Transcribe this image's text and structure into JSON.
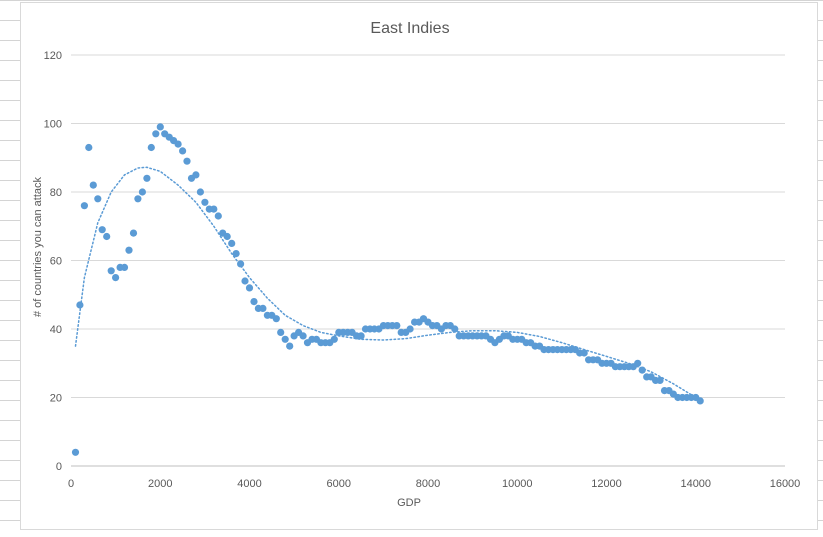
{
  "chart_data": {
    "type": "scatter",
    "title": "East Indies",
    "xlabel": "GDP",
    "ylabel": "# of countries you can attack",
    "xlim": [
      0,
      16000
    ],
    "ylim": [
      0,
      120
    ],
    "x_ticks": [
      "0",
      "2000",
      "4000",
      "6000",
      "8000",
      "10000",
      "12000",
      "14000",
      "16000"
    ],
    "y_ticks": [
      "0",
      "20",
      "40",
      "60",
      "80",
      "100",
      "120"
    ],
    "grid": "horizontal",
    "legend": "none",
    "marker_color": "#5b9bd5",
    "trendline": {
      "type": "polynomial",
      "style": "dotted",
      "color": "#5b9bd5"
    },
    "series": [
      {
        "points": [
          [
            100,
            4
          ],
          [
            200,
            47
          ],
          [
            300,
            76
          ],
          [
            400,
            93
          ],
          [
            500,
            82
          ],
          [
            600,
            78
          ],
          [
            700,
            69
          ],
          [
            800,
            67
          ],
          [
            900,
            57
          ],
          [
            1000,
            55
          ],
          [
            1100,
            58
          ],
          [
            1200,
            58
          ],
          [
            1300,
            63
          ],
          [
            1400,
            68
          ],
          [
            1500,
            78
          ],
          [
            1600,
            80
          ],
          [
            1700,
            84
          ],
          [
            1800,
            93
          ],
          [
            1900,
            97
          ],
          [
            2000,
            99
          ],
          [
            2100,
            97
          ],
          [
            2200,
            96
          ],
          [
            2300,
            95
          ],
          [
            2400,
            94
          ],
          [
            2500,
            92
          ],
          [
            2600,
            89
          ],
          [
            2700,
            84
          ],
          [
            2800,
            85
          ],
          [
            2900,
            80
          ],
          [
            3000,
            77
          ],
          [
            3100,
            75
          ],
          [
            3200,
            75
          ],
          [
            3300,
            73
          ],
          [
            3400,
            68
          ],
          [
            3500,
            67
          ],
          [
            3600,
            65
          ],
          [
            3700,
            62
          ],
          [
            3800,
            59
          ],
          [
            3900,
            54
          ],
          [
            4000,
            52
          ],
          [
            4100,
            48
          ],
          [
            4200,
            46
          ],
          [
            4300,
            46
          ],
          [
            4400,
            44
          ],
          [
            4500,
            44
          ],
          [
            4600,
            43
          ],
          [
            4700,
            39
          ],
          [
            4800,
            37
          ],
          [
            4900,
            35
          ],
          [
            5000,
            38
          ],
          [
            5100,
            39
          ],
          [
            5200,
            38
          ],
          [
            5300,
            36
          ],
          [
            5400,
            37
          ],
          [
            5500,
            37
          ],
          [
            5600,
            36
          ],
          [
            5700,
            36
          ],
          [
            5800,
            36
          ],
          [
            5900,
            37
          ],
          [
            6000,
            39
          ],
          [
            6100,
            39
          ],
          [
            6200,
            39
          ],
          [
            6300,
            39
          ],
          [
            6400,
            38
          ],
          [
            6500,
            38
          ],
          [
            6600,
            40
          ],
          [
            6700,
            40
          ],
          [
            6800,
            40
          ],
          [
            6900,
            40
          ],
          [
            7000,
            41
          ],
          [
            7100,
            41
          ],
          [
            7200,
            41
          ],
          [
            7300,
            41
          ],
          [
            7400,
            39
          ],
          [
            7500,
            39
          ],
          [
            7600,
            40
          ],
          [
            7700,
            42
          ],
          [
            7800,
            42
          ],
          [
            7900,
            43
          ],
          [
            8000,
            42
          ],
          [
            8100,
            41
          ],
          [
            8200,
            41
          ],
          [
            8300,
            40
          ],
          [
            8400,
            41
          ],
          [
            8500,
            41
          ],
          [
            8600,
            40
          ],
          [
            8700,
            38
          ],
          [
            8800,
            38
          ],
          [
            8900,
            38
          ],
          [
            9000,
            38
          ],
          [
            9100,
            38
          ],
          [
            9200,
            38
          ],
          [
            9300,
            38
          ],
          [
            9400,
            37
          ],
          [
            9500,
            36
          ],
          [
            9600,
            37
          ],
          [
            9700,
            38
          ],
          [
            9800,
            38
          ],
          [
            9900,
            37
          ],
          [
            10000,
            37
          ],
          [
            10100,
            37
          ],
          [
            10200,
            36
          ],
          [
            10300,
            36
          ],
          [
            10400,
            35
          ],
          [
            10500,
            35
          ],
          [
            10600,
            34
          ],
          [
            10700,
            34
          ],
          [
            10800,
            34
          ],
          [
            10900,
            34
          ],
          [
            11000,
            34
          ],
          [
            11100,
            34
          ],
          [
            11200,
            34
          ],
          [
            11300,
            34
          ],
          [
            11400,
            33
          ],
          [
            11500,
            33
          ],
          [
            11600,
            31
          ],
          [
            11700,
            31
          ],
          [
            11800,
            31
          ],
          [
            11900,
            30
          ],
          [
            12000,
            30
          ],
          [
            12100,
            30
          ],
          [
            12200,
            29
          ],
          [
            12300,
            29
          ],
          [
            12400,
            29
          ],
          [
            12500,
            29
          ],
          [
            12600,
            29
          ],
          [
            12700,
            30
          ],
          [
            12800,
            28
          ],
          [
            12900,
            26
          ],
          [
            13000,
            26
          ],
          [
            13100,
            25
          ],
          [
            13200,
            25
          ],
          [
            13300,
            22
          ],
          [
            13400,
            22
          ],
          [
            13500,
            21
          ],
          [
            13600,
            20
          ],
          [
            13700,
            20
          ],
          [
            13800,
            20
          ],
          [
            13900,
            20
          ],
          [
            14000,
            20
          ],
          [
            14100,
            19
          ]
        ]
      }
    ],
    "trendline_points": [
      [
        100,
        35
      ],
      [
        300,
        55
      ],
      [
        600,
        71
      ],
      [
        900,
        80
      ],
      [
        1200,
        85
      ],
      [
        1500,
        87
      ],
      [
        1700,
        87.2
      ],
      [
        2000,
        86
      ],
      [
        2400,
        82
      ],
      [
        2800,
        77
      ],
      [
        3200,
        70
      ],
      [
        3600,
        62
      ],
      [
        4000,
        55
      ],
      [
        4400,
        49
      ],
      [
        4800,
        44
      ],
      [
        5200,
        41
      ],
      [
        5600,
        39
      ],
      [
        6000,
        38
      ],
      [
        6500,
        37
      ],
      [
        7000,
        36.8
      ],
      [
        7500,
        37.2
      ],
      [
        8000,
        38.2
      ],
      [
        8500,
        39
      ],
      [
        9000,
        39.5
      ],
      [
        9500,
        39.5
      ],
      [
        10000,
        39
      ],
      [
        10500,
        37.8
      ],
      [
        11000,
        36
      ],
      [
        11500,
        34
      ],
      [
        12000,
        32
      ],
      [
        12500,
        30
      ],
      [
        13000,
        27.5
      ],
      [
        13500,
        24
      ],
      [
        14000,
        20
      ],
      [
        14100,
        19
      ]
    ]
  }
}
